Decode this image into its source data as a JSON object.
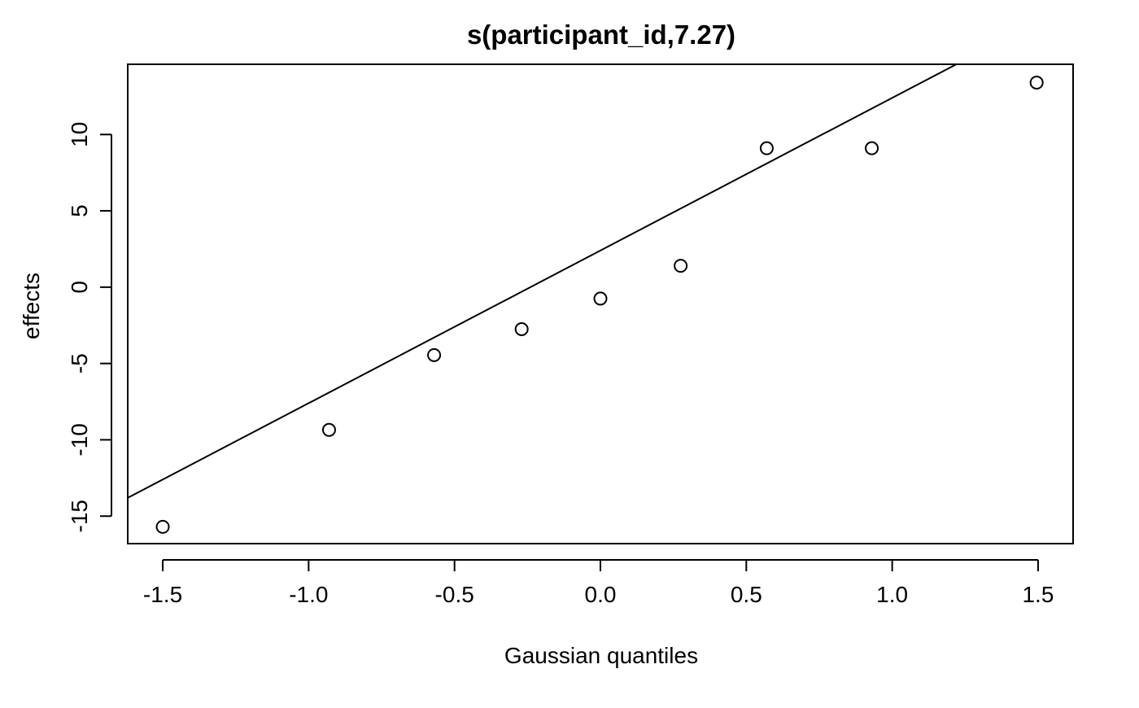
{
  "chart_data": {
    "type": "scatter",
    "title": "s(participant_id,7.27)",
    "xlabel": "Gaussian quantiles",
    "ylabel": "effects",
    "xlim": [
      -1.62,
      1.62
    ],
    "ylim": [
      -16.8,
      14.6
    ],
    "x_ticks": [
      -1.5,
      -1.0,
      -0.5,
      0.0,
      0.5,
      1.0,
      1.5
    ],
    "x_tick_labels": [
      "-1.5",
      "-1.0",
      "-0.5",
      "0.0",
      "0.5",
      "1.0",
      "1.5"
    ],
    "y_ticks": [
      -15,
      -10,
      -5,
      0,
      5,
      10
    ],
    "y_tick_labels": [
      "-15",
      "-10",
      "-5",
      "0",
      "5",
      "10"
    ],
    "grid": false,
    "points": [
      {
        "x": -1.5,
        "y": -15.7
      },
      {
        "x": -0.93,
        "y": -9.35
      },
      {
        "x": -0.57,
        "y": -4.45
      },
      {
        "x": -0.27,
        "y": -2.75
      },
      {
        "x": 0.0,
        "y": -0.75
      },
      {
        "x": 0.275,
        "y": 1.4
      },
      {
        "x": 0.57,
        "y": 9.1
      },
      {
        "x": 0.93,
        "y": 9.1
      },
      {
        "x": 1.495,
        "y": 13.4
      }
    ],
    "reference_line": {
      "intercept": 2.4,
      "slope": 10.0
    },
    "colors": {
      "line": "#000000",
      "points": "#000000",
      "background": "#ffffff"
    }
  }
}
